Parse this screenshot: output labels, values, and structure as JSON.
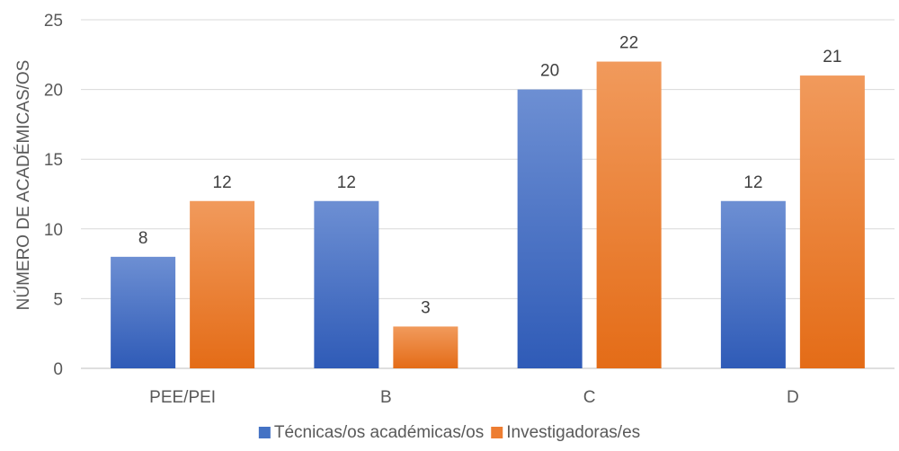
{
  "chart_data": {
    "type": "bar",
    "title": "",
    "xlabel": "",
    "ylabel": "NÚMERO DE ACADÉMICAS/OS",
    "categories": [
      "PEE/PEI",
      "B",
      "C",
      "D"
    ],
    "series": [
      {
        "name": "Técnicas/os académicas/os",
        "values": [
          8,
          12,
          20,
          12
        ],
        "color": "#4472C4"
      },
      {
        "name": "Investigadoras/es",
        "values": [
          12,
          3,
          22,
          21
        ],
        "color": "#ED7D31"
      }
    ],
    "ylim": [
      0,
      25
    ],
    "yticks": [
      "0",
      "5",
      "10",
      "15",
      "20",
      "25"
    ],
    "grid": true,
    "legend": "bottom",
    "data_labels": true
  }
}
